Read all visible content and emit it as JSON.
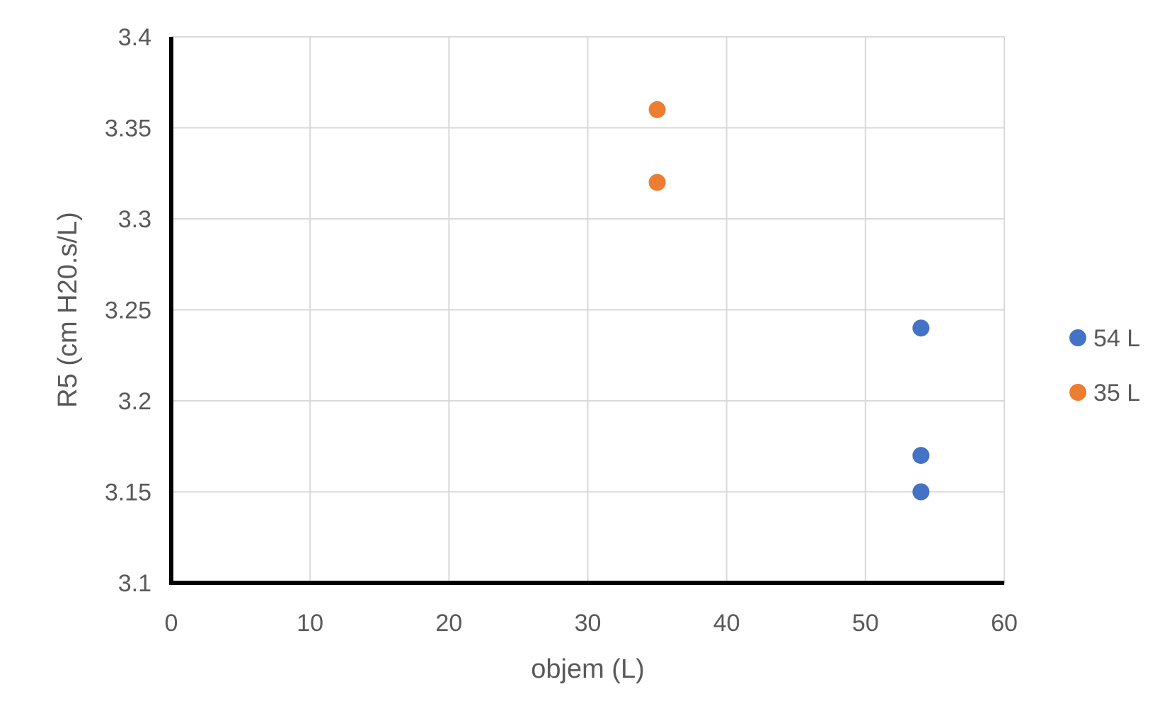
{
  "chart_data": {
    "type": "scatter",
    "title": "",
    "xlabel": "objem (L)",
    "ylabel": "R5 (cm H20.s/L)",
    "xlim": [
      0,
      60
    ],
    "ylim": [
      3.1,
      3.4
    ],
    "x_ticks": [
      0,
      10,
      20,
      30,
      40,
      50,
      60
    ],
    "y_ticks": [
      3.1,
      3.15,
      3.2,
      3.25,
      3.3,
      3.35,
      3.4
    ],
    "x_tick_labels": [
      "0",
      "10",
      "20",
      "30",
      "40",
      "50",
      "60"
    ],
    "y_tick_labels": [
      "3.1",
      "3.15",
      "3.2",
      "3.25",
      "3.3",
      "3.35",
      "3.4"
    ],
    "grid": true,
    "legend_position": "right",
    "series": [
      {
        "name": "54 L",
        "color": "#4472C4",
        "points": [
          {
            "x": 54,
            "y": 3.24
          },
          {
            "x": 54,
            "y": 3.17
          },
          {
            "x": 54,
            "y": 3.15
          }
        ]
      },
      {
        "name": "35 L",
        "color": "#ED7D31",
        "points": [
          {
            "x": 35,
            "y": 3.36
          },
          {
            "x": 35,
            "y": 3.32
          }
        ]
      }
    ]
  }
}
